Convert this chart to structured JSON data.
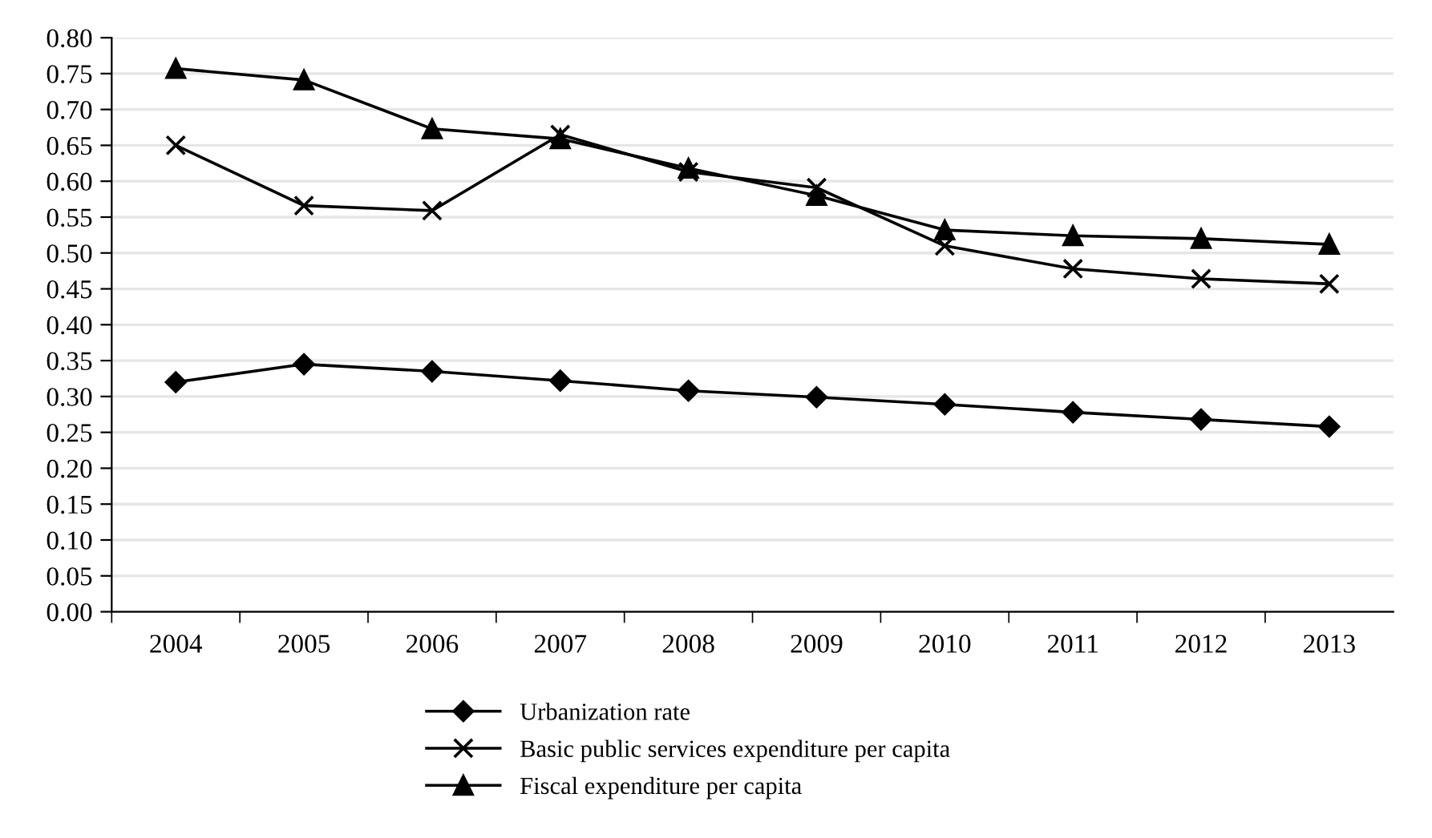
{
  "chart_data": {
    "type": "line",
    "categories": [
      "2004",
      "2005",
      "2006",
      "2007",
      "2008",
      "2009",
      "2010",
      "2011",
      "2012",
      "2013"
    ],
    "series": [
      {
        "name": "Urbanization rate",
        "color": "#000000",
        "marker": "diamond",
        "values": [
          0.32,
          0.345,
          0.335,
          0.322,
          0.308,
          0.299,
          0.289,
          0.278,
          0.268,
          0.258
        ]
      },
      {
        "name": "Basic public services expenditure per capita",
        "color": "#000000",
        "marker": "cross",
        "values": [
          0.65,
          0.566,
          0.559,
          0.665,
          0.613,
          0.591,
          0.51,
          0.478,
          0.464,
          0.457
        ]
      },
      {
        "name": "Fiscal expenditure per capita",
        "color": "#000000",
        "marker": "triangle",
        "values": [
          0.757,
          0.741,
          0.673,
          0.659,
          0.618,
          0.58,
          0.532,
          0.524,
          0.52,
          0.512
        ]
      }
    ],
    "ylim": [
      0,
      0.8
    ],
    "yticks": [
      {
        "value": 0,
        "label": "0.00"
      },
      {
        "value": 0.05,
        "label": "0.05"
      },
      {
        "value": 0.1,
        "label": "0.10"
      },
      {
        "value": 0.15,
        "label": "0.15"
      },
      {
        "value": 0.2,
        "label": "0.20"
      },
      {
        "value": 0.25,
        "label": "0.25"
      },
      {
        "value": 0.3,
        "label": "0.30"
      },
      {
        "value": 0.35,
        "label": "0.35"
      },
      {
        "value": 0.4,
        "label": "0.40"
      },
      {
        "value": 0.45,
        "label": "0.45"
      },
      {
        "value": 0.5,
        "label": "0.50"
      },
      {
        "value": 0.55,
        "label": "0.55"
      },
      {
        "value": 0.6,
        "label": "0.60"
      },
      {
        "value": 0.65,
        "label": "0.65"
      },
      {
        "value": 0.7,
        "label": "0.70"
      },
      {
        "value": 0.75,
        "label": "0.75"
      },
      {
        "value": 0.8,
        "label": "0.80"
      }
    ],
    "grid": "y",
    "legend": "bottom",
    "line_style": "solid"
  }
}
